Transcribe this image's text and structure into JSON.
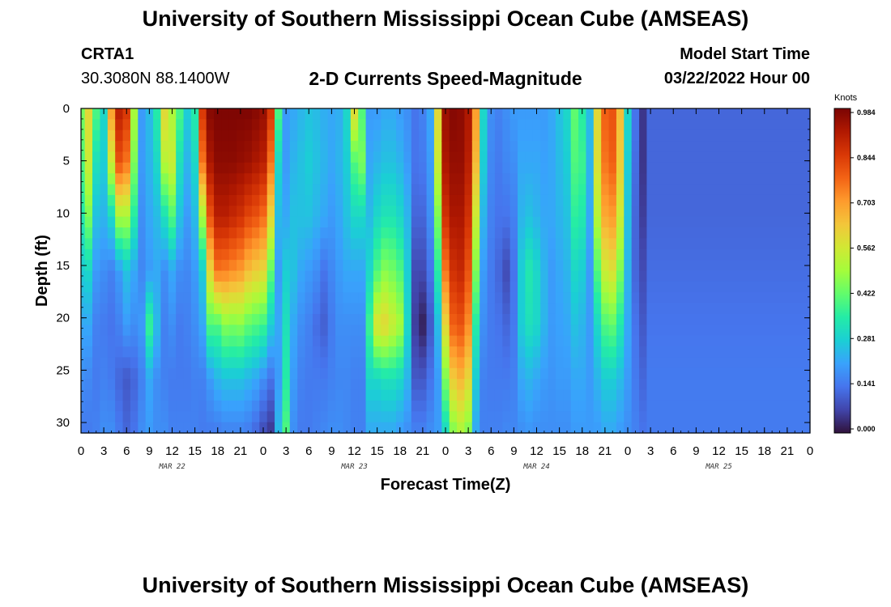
{
  "header": {
    "title": "University of Southern Mississippi Ocean Cube (AMSEAS)",
    "station_id": "CRTA1",
    "coords": "30.3080N  88.1400W",
    "plot_title": "2-D Currents Speed-Magnitude",
    "start_label": "Model Start Time",
    "start_value": "03/22/2022 Hour 00"
  },
  "footer": {
    "title": "University of Southern Mississippi Ocean Cube (AMSEAS)"
  },
  "chart_data": {
    "type": "heatmap",
    "title": "2-D Currents Speed-Magnitude",
    "xlabel": "Forecast Time(Z)",
    "ylabel": "Depth (ft)",
    "x_hours_range": [
      0,
      96
    ],
    "x_tick_labels": [
      "0",
      "3",
      "6",
      "9",
      "12",
      "15",
      "18",
      "21",
      "0",
      "3",
      "6",
      "9",
      "12",
      "15",
      "18",
      "21",
      "0",
      "3",
      "6",
      "9",
      "12",
      "15",
      "18",
      "21",
      "0",
      "3",
      "6",
      "9",
      "12",
      "15",
      "18",
      "21",
      "0"
    ],
    "date_labels": [
      {
        "label": "MAR 22",
        "hour": 12
      },
      {
        "label": "MAR 23",
        "hour": 36
      },
      {
        "label": "MAR 24",
        "hour": 60
      },
      {
        "label": "MAR 25",
        "hour": 84
      }
    ],
    "y_range_ft": [
      0,
      31
    ],
    "y_ticks": [
      0,
      5,
      10,
      15,
      20,
      25,
      30
    ],
    "colorbar": {
      "unit": "Knots",
      "min": 0.0,
      "max": 0.984,
      "tick_labels": [
        "0.984",
        "0.844",
        "0.703",
        "0.562",
        "0.422",
        "0.281",
        "0.141",
        "0.000"
      ],
      "colormap": [
        "#30123b",
        "#4145ab",
        "#4675ed",
        "#39a2fc",
        "#1bcfd4",
        "#24eca6",
        "#61fc6c",
        "#a4fc3b",
        "#d1e834",
        "#f3c63a",
        "#fe9b2d",
        "#f36315",
        "#d93806",
        "#b11901",
        "#7a0403"
      ]
    },
    "speed_profiles": [
      {
        "hour": 0,
        "v": [
          0.45,
          0.4,
          0.34,
          0.28,
          0.22,
          0.18,
          0.15
        ]
      },
      {
        "hour": 1,
        "v": [
          0.6,
          0.55,
          0.45,
          0.3,
          0.22,
          0.17,
          0.15
        ]
      },
      {
        "hour": 2,
        "v": [
          0.4,
          0.32,
          0.26,
          0.2,
          0.16,
          0.15,
          0.16
        ]
      },
      {
        "hour": 3,
        "v": [
          0.3,
          0.28,
          0.24,
          0.18,
          0.15,
          0.16,
          0.18
        ]
      },
      {
        "hour": 4,
        "v": [
          0.7,
          0.55,
          0.3,
          0.16,
          0.14,
          0.15,
          0.18
        ]
      },
      {
        "hour": 5,
        "v": [
          0.9,
          0.8,
          0.5,
          0.2,
          0.16,
          0.12,
          0.15
        ]
      },
      {
        "hour": 6,
        "v": [
          0.85,
          0.75,
          0.5,
          0.26,
          0.2,
          0.1,
          0.12
        ]
      },
      {
        "hour": 7,
        "v": [
          0.5,
          0.45,
          0.35,
          0.22,
          0.18,
          0.12,
          0.14
        ]
      },
      {
        "hour": 8,
        "v": [
          0.2,
          0.2,
          0.18,
          0.17,
          0.2,
          0.16,
          0.18
        ]
      },
      {
        "hour": 9,
        "v": [
          0.25,
          0.24,
          0.22,
          0.2,
          0.38,
          0.22,
          0.2
        ]
      },
      {
        "hour": 10,
        "v": [
          0.35,
          0.3,
          0.25,
          0.22,
          0.25,
          0.18,
          0.18
        ]
      },
      {
        "hour": 11,
        "v": [
          0.6,
          0.52,
          0.32,
          0.18,
          0.16,
          0.16,
          0.18
        ]
      },
      {
        "hour": 12,
        "v": [
          0.5,
          0.55,
          0.4,
          0.22,
          0.18,
          0.15,
          0.16
        ]
      },
      {
        "hour": 13,
        "v": [
          0.4,
          0.32,
          0.26,
          0.18,
          0.15,
          0.15,
          0.16
        ]
      },
      {
        "hour": 14,
        "v": [
          0.28,
          0.24,
          0.2,
          0.17,
          0.16,
          0.15,
          0.16
        ]
      },
      {
        "hour": 15,
        "v": [
          0.35,
          0.3,
          0.25,
          0.2,
          0.18,
          0.16,
          0.16
        ]
      },
      {
        "hour": 16,
        "v": [
          0.85,
          0.75,
          0.5,
          0.28,
          0.22,
          0.16,
          0.15
        ]
      },
      {
        "hour": 17,
        "v": [
          0.97,
          0.92,
          0.8,
          0.6,
          0.4,
          0.2,
          0.15
        ]
      },
      {
        "hour": 18,
        "v": [
          0.98,
          0.96,
          0.9,
          0.75,
          0.4,
          0.24,
          0.15
        ]
      },
      {
        "hour": 19,
        "v": [
          0.98,
          0.96,
          0.9,
          0.74,
          0.46,
          0.26,
          0.16
        ]
      },
      {
        "hour": 20,
        "v": [
          0.98,
          0.96,
          0.88,
          0.72,
          0.45,
          0.26,
          0.16
        ]
      },
      {
        "hour": 21,
        "v": [
          0.98,
          0.95,
          0.86,
          0.7,
          0.46,
          0.26,
          0.16
        ]
      },
      {
        "hour": 22,
        "v": [
          0.98,
          0.94,
          0.82,
          0.65,
          0.42,
          0.24,
          0.15
        ]
      },
      {
        "hour": 23,
        "v": [
          0.97,
          0.92,
          0.8,
          0.62,
          0.4,
          0.22,
          0.12
        ]
      },
      {
        "hour": 24,
        "v": [
          0.95,
          0.9,
          0.76,
          0.6,
          0.38,
          0.18,
          0.08
        ]
      },
      {
        "hour": 25,
        "v": [
          0.85,
          0.75,
          0.6,
          0.42,
          0.28,
          0.14,
          0.05
        ]
      },
      {
        "hour": 26,
        "v": [
          0.4,
          0.3,
          0.25,
          0.2,
          0.22,
          0.2,
          0.25
        ]
      },
      {
        "hour": 27,
        "v": [
          0.2,
          0.2,
          0.22,
          0.28,
          0.32,
          0.35,
          0.4
        ]
      },
      {
        "hour": 28,
        "v": [
          0.22,
          0.24,
          0.26,
          0.26,
          0.22,
          0.2,
          0.18
        ]
      },
      {
        "hour": 29,
        "v": [
          0.24,
          0.26,
          0.26,
          0.22,
          0.18,
          0.16,
          0.15
        ]
      },
      {
        "hour": 30,
        "v": [
          0.26,
          0.28,
          0.26,
          0.2,
          0.16,
          0.15,
          0.15
        ]
      },
      {
        "hour": 31,
        "v": [
          0.25,
          0.26,
          0.24,
          0.18,
          0.13,
          0.15,
          0.16
        ]
      },
      {
        "hour": 32,
        "v": [
          0.23,
          0.24,
          0.22,
          0.14,
          0.11,
          0.15,
          0.17
        ]
      },
      {
        "hour": 33,
        "v": [
          0.22,
          0.22,
          0.2,
          0.17,
          0.15,
          0.16,
          0.18
        ]
      },
      {
        "hour": 34,
        "v": [
          0.23,
          0.24,
          0.22,
          0.2,
          0.18,
          0.17,
          0.18
        ]
      },
      {
        "hour": 35,
        "v": [
          0.3,
          0.28,
          0.26,
          0.22,
          0.18,
          0.17,
          0.17
        ]
      },
      {
        "hour": 36,
        "v": [
          0.6,
          0.4,
          0.3,
          0.22,
          0.18,
          0.16,
          0.16
        ]
      },
      {
        "hour": 37,
        "v": [
          0.4,
          0.45,
          0.3,
          0.22,
          0.18,
          0.16,
          0.16
        ]
      },
      {
        "hour": 38,
        "v": [
          0.2,
          0.22,
          0.25,
          0.3,
          0.38,
          0.3,
          0.22
        ]
      },
      {
        "hour": 39,
        "v": [
          0.2,
          0.24,
          0.3,
          0.4,
          0.58,
          0.3,
          0.22
        ]
      },
      {
        "hour": 40,
        "v": [
          0.22,
          0.26,
          0.33,
          0.46,
          0.6,
          0.32,
          0.22
        ]
      },
      {
        "hour": 41,
        "v": [
          0.22,
          0.26,
          0.33,
          0.44,
          0.55,
          0.32,
          0.22
        ]
      },
      {
        "hour": 42,
        "v": [
          0.2,
          0.24,
          0.3,
          0.4,
          0.5,
          0.3,
          0.2
        ]
      },
      {
        "hour": 43,
        "v": [
          0.18,
          0.2,
          0.24,
          0.28,
          0.3,
          0.24,
          0.18
        ]
      },
      {
        "hour": 44,
        "v": [
          0.14,
          0.14,
          0.12,
          0.08,
          0.06,
          0.1,
          0.16
        ]
      },
      {
        "hour": 45,
        "v": [
          0.16,
          0.15,
          0.12,
          0.08,
          0.02,
          0.1,
          0.16
        ]
      },
      {
        "hour": 46,
        "v": [
          0.22,
          0.2,
          0.18,
          0.14,
          0.1,
          0.14,
          0.18
        ]
      },
      {
        "hour": 47,
        "v": [
          0.6,
          0.55,
          0.45,
          0.35,
          0.25,
          0.2,
          0.2
        ]
      },
      {
        "hour": 48,
        "v": [
          0.94,
          0.92,
          0.86,
          0.75,
          0.6,
          0.45,
          0.3
        ]
      },
      {
        "hour": 49,
        "v": [
          0.97,
          0.95,
          0.92,
          0.86,
          0.78,
          0.62,
          0.45
        ]
      },
      {
        "hour": 50,
        "v": [
          0.96,
          0.95,
          0.92,
          0.88,
          0.8,
          0.66,
          0.5
        ]
      },
      {
        "hour": 51,
        "v": [
          0.92,
          0.9,
          0.86,
          0.8,
          0.72,
          0.6,
          0.45
        ]
      },
      {
        "hour": 52,
        "v": [
          0.7,
          0.65,
          0.55,
          0.45,
          0.35,
          0.28,
          0.22
        ]
      },
      {
        "hour": 53,
        "v": [
          0.3,
          0.28,
          0.24,
          0.2,
          0.18,
          0.16,
          0.16
        ]
      },
      {
        "hour": 54,
        "v": [
          0.18,
          0.17,
          0.16,
          0.15,
          0.15,
          0.15,
          0.16
        ]
      },
      {
        "hour": 55,
        "v": [
          0.16,
          0.15,
          0.14,
          0.12,
          0.14,
          0.15,
          0.16
        ]
      },
      {
        "hour": 56,
        "v": [
          0.18,
          0.17,
          0.14,
          0.08,
          0.12,
          0.15,
          0.17
        ]
      },
      {
        "hour": 57,
        "v": [
          0.2,
          0.18,
          0.16,
          0.14,
          0.15,
          0.16,
          0.17
        ]
      },
      {
        "hour": 58,
        "v": [
          0.2,
          0.22,
          0.24,
          0.28,
          0.28,
          0.22,
          0.18
        ]
      },
      {
        "hour": 59,
        "v": [
          0.2,
          0.22,
          0.26,
          0.34,
          0.32,
          0.24,
          0.19
        ]
      },
      {
        "hour": 60,
        "v": [
          0.2,
          0.22,
          0.24,
          0.3,
          0.3,
          0.22,
          0.18
        ]
      },
      {
        "hour": 61,
        "v": [
          0.2,
          0.21,
          0.22,
          0.24,
          0.24,
          0.2,
          0.18
        ]
      },
      {
        "hour": 62,
        "v": [
          0.22,
          0.22,
          0.22,
          0.2,
          0.2,
          0.19,
          0.18
        ]
      },
      {
        "hour": 63,
        "v": [
          0.26,
          0.25,
          0.24,
          0.22,
          0.21,
          0.2,
          0.18
        ]
      },
      {
        "hour": 64,
        "v": [
          0.3,
          0.28,
          0.26,
          0.24,
          0.22,
          0.2,
          0.18
        ]
      },
      {
        "hour": 65,
        "v": [
          0.42,
          0.4,
          0.36,
          0.3,
          0.26,
          0.22,
          0.2
        ]
      },
      {
        "hour": 66,
        "v": [
          0.35,
          0.38,
          0.34,
          0.28,
          0.24,
          0.22,
          0.2
        ]
      },
      {
        "hour": 67,
        "v": [
          0.25,
          0.24,
          0.22,
          0.2,
          0.2,
          0.2,
          0.2
        ]
      },
      {
        "hour": 68,
        "v": [
          0.6,
          0.58,
          0.52,
          0.4,
          0.3,
          0.24,
          0.2
        ]
      },
      {
        "hour": 69,
        "v": [
          0.78,
          0.75,
          0.68,
          0.55,
          0.4,
          0.28,
          0.22
        ]
      },
      {
        "hour": 70,
        "v": [
          0.8,
          0.78,
          0.7,
          0.58,
          0.42,
          0.28,
          0.22
        ]
      },
      {
        "hour": 71,
        "v": [
          0.65,
          0.62,
          0.55,
          0.45,
          0.34,
          0.25,
          0.2
        ]
      },
      {
        "hour": 72,
        "v": [
          0.3,
          0.28,
          0.26,
          0.24,
          0.22,
          0.2,
          0.18
        ]
      },
      {
        "hour": 73,
        "v": [
          0.14,
          0.13,
          0.12,
          0.12,
          0.14,
          0.15,
          0.16
        ]
      },
      {
        "hour": 74,
        "v": [
          0.05,
          0.05,
          0.06,
          0.08,
          0.1,
          0.12,
          0.14
        ]
      },
      {
        "hour": 75,
        "v": [
          0.12,
          0.12,
          0.12,
          0.13,
          0.14,
          0.15,
          0.15
        ]
      }
    ]
  }
}
